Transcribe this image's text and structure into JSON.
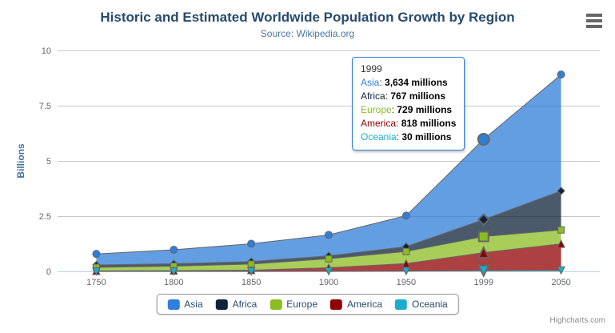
{
  "chart_data": {
    "type": "area",
    "stacking": "normal",
    "title": "Historic and Estimated Worldwide Population Growth by Region",
    "subtitle": "Source: Wikipedia.org",
    "xlabel": "",
    "ylabel": "Billions",
    "unit": "millions",
    "categories": [
      "1750",
      "1800",
      "1850",
      "1900",
      "1950",
      "1999",
      "2050"
    ],
    "series": [
      {
        "name": "Asia",
        "color": "#2f7ed8",
        "marker": "circle",
        "values_millions": [
          502,
          635,
          809,
          947,
          1402,
          3634,
          5268
        ]
      },
      {
        "name": "Africa",
        "color": "#0d233a",
        "marker": "diamond",
        "values_millions": [
          106,
          107,
          111,
          133,
          221,
          767,
          1766
        ]
      },
      {
        "name": "Europe",
        "color": "#8bbc21",
        "marker": "square",
        "values_millions": [
          163,
          203,
          276,
          408,
          547,
          729,
          628
        ]
      },
      {
        "name": "America",
        "color": "#910000",
        "marker": "triangle",
        "values_millions": [
          18,
          31,
          54,
          156,
          339,
          818,
          1201
        ]
      },
      {
        "name": "Oceania",
        "color": "#1aadce",
        "marker": "triangle-down",
        "values_millions": [
          2,
          2,
          2,
          6,
          13,
          30,
          46
        ]
      }
    ],
    "stack_order_bottom_to_top": [
      "Oceania",
      "America",
      "Europe",
      "Africa",
      "Asia"
    ],
    "ylim": [
      0,
      10
    ],
    "yticks": [
      0,
      2.5,
      5,
      7.5,
      10
    ],
    "ytick_labels": [
      "0",
      "2.5",
      "5",
      "7.5",
      "10"
    ],
    "grid": "horizontal",
    "legend_position": "bottom",
    "hovered_category_index": 5,
    "style_colors": {
      "series_line": "#666666",
      "gridline": "#c8c8c8",
      "x_axis_line": "#c0d0e0",
      "axis_label": "#666666",
      "y_axis_title": "#4572a7",
      "title": "#274b6d",
      "subtitle": "#4d759e",
      "legend_text": "#274b6d",
      "fill_opacity": 0.75
    }
  },
  "tooltip": {
    "header": "1999",
    "rows": [
      {
        "name": "Asia",
        "color": "#2f7ed8",
        "value": "3,634 millions"
      },
      {
        "name": "Africa",
        "color": "#0d233a",
        "value": "767 millions"
      },
      {
        "name": "Europe",
        "color": "#8bbc21",
        "value": "729 millions"
      },
      {
        "name": "America",
        "color": "#910000",
        "value": "818 millions"
      },
      {
        "name": "Oceania",
        "color": "#1aadce",
        "value": "30 millions"
      }
    ]
  },
  "credits": {
    "label": "Highcharts.com"
  },
  "export_menu": {
    "icon_name": "hamburger-menu-icon"
  }
}
